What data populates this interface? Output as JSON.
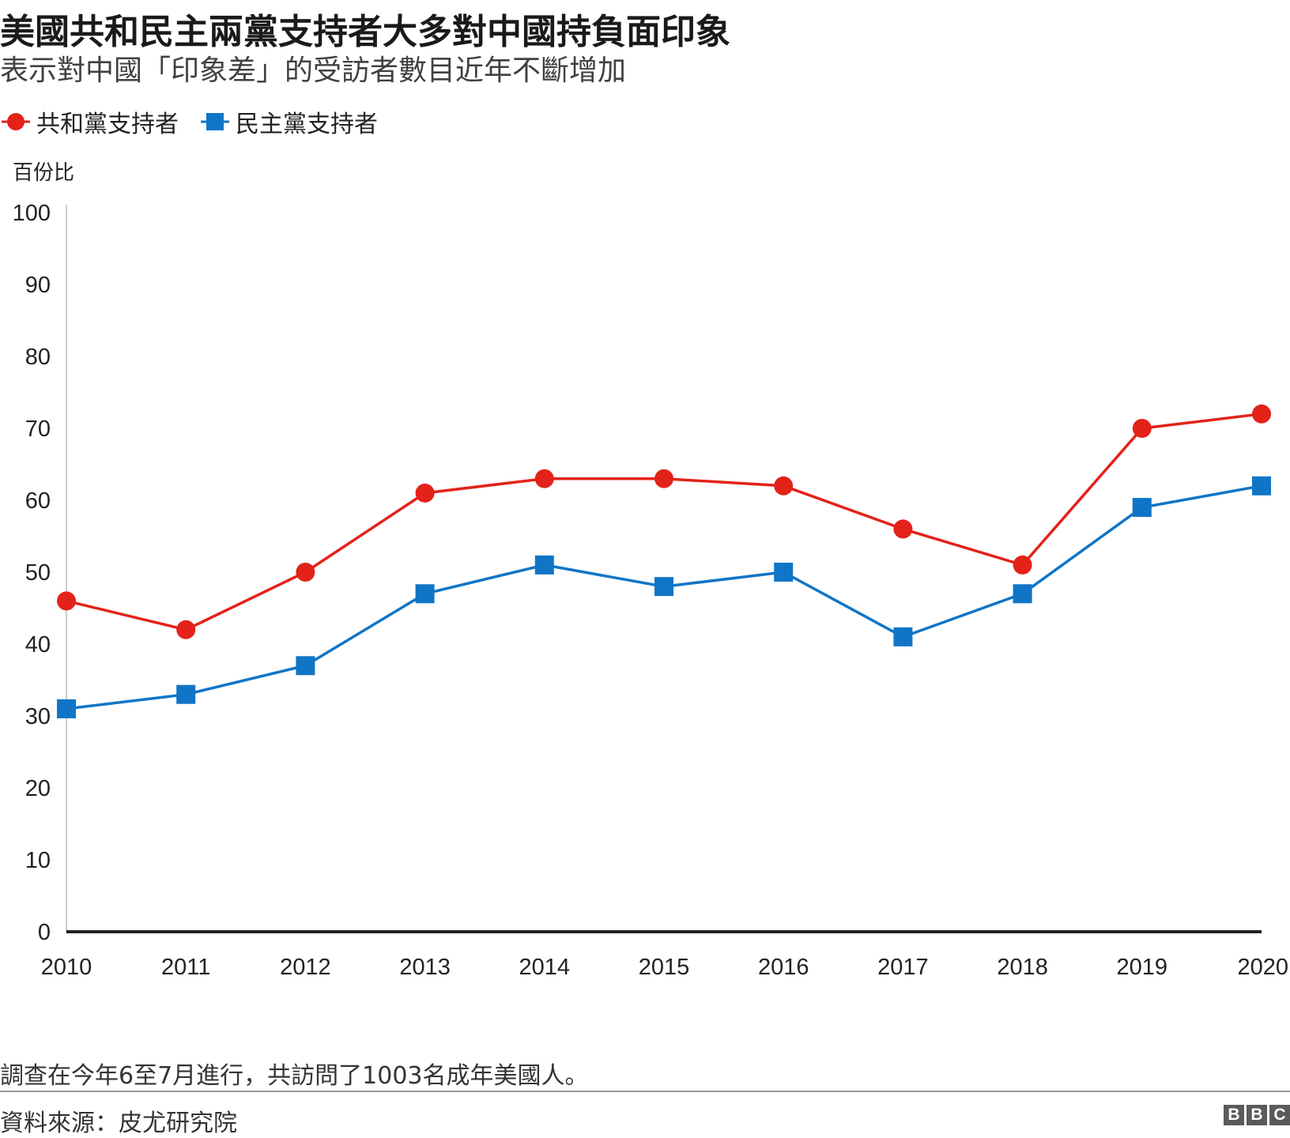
{
  "header": {
    "title": "美國共和民主兩黨支持者大多對中國持負面印象",
    "subtitle": "表示對中國「印象差」的受訪者數目近年不斷增加"
  },
  "footer": {
    "note": "調查在今年6至7月進行，共訪問了1003名成年美國人。",
    "source": "資料來源：皮尤研究院",
    "logo_letters": [
      "B",
      "B",
      "C"
    ]
  },
  "chart_data": {
    "type": "line",
    "title": "美國共和民主兩黨支持者大多對中國持負面印象",
    "subtitle": "表示對中國「印象差」的受訪者數目近年不斷增加",
    "ylabel": "百份比",
    "xlabel": "",
    "x": [
      "2010",
      "2011",
      "2012",
      "2013",
      "2014",
      "2015",
      "2016",
      "2017",
      "2018",
      "2019",
      "2020"
    ],
    "ylim": [
      0,
      100
    ],
    "yticks": [
      0,
      10,
      20,
      30,
      40,
      50,
      60,
      70,
      80,
      90,
      100
    ],
    "grid": false,
    "legend_position": "top-left",
    "series": [
      {
        "name": "共和黨支持者",
        "color": "#e32219",
        "marker": "circle",
        "values": [
          46,
          42,
          50,
          61,
          63,
          63,
          62,
          56,
          51,
          70,
          72
        ]
      },
      {
        "name": "民主黨支持者",
        "color": "#1075c6",
        "marker": "square",
        "values": [
          31,
          33,
          37,
          47,
          51,
          48,
          50,
          41,
          47,
          59,
          62
        ]
      }
    ]
  }
}
